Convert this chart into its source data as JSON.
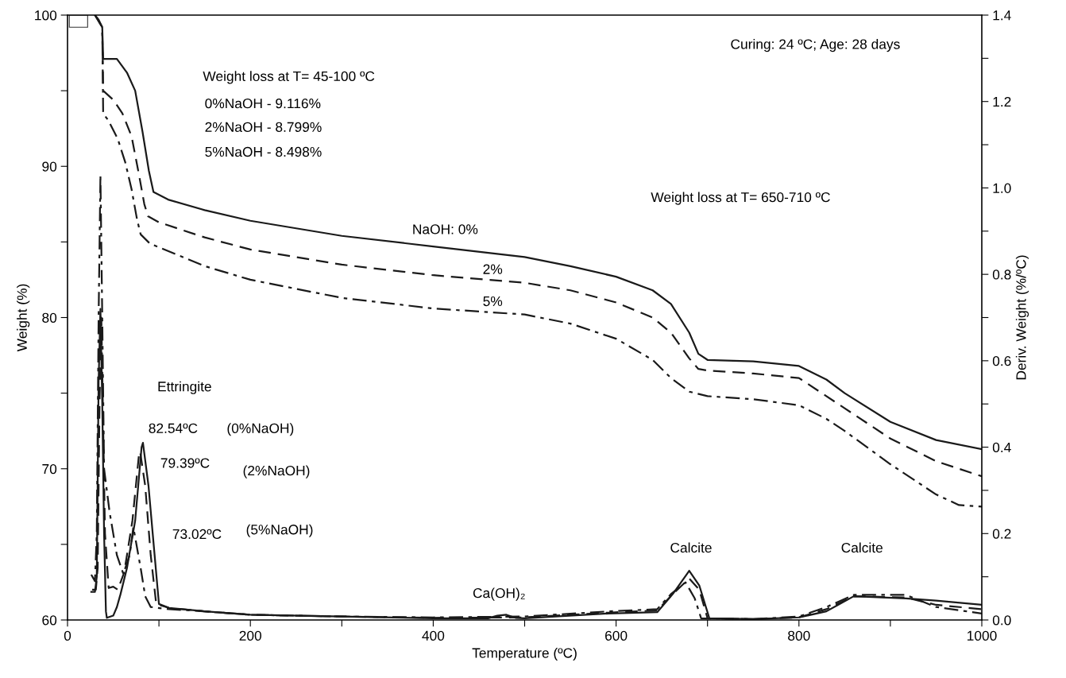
{
  "chart_data": {
    "type": "line",
    "xlabel": "Temperature (ºC)",
    "ylabel": "Weight (%)",
    "y2label": "Deriv. Weight (%/ºC)",
    "xlim": [
      0,
      1000
    ],
    "xticks": [
      0,
      {
        "value": 100,
        "label": null
      },
      200,
      {
        "value": 300,
        "label": null
      },
      400,
      {
        "value": 500,
        "label": null
      },
      600,
      {
        "value": 700,
        "label": null
      },
      800,
      {
        "value": 900,
        "label": null
      },
      1000
    ],
    "ylim": [
      60,
      100
    ],
    "yticks": [
      60,
      {
        "value": 65,
        "label": null
      },
      70,
      {
        "value": 75,
        "label": null
      },
      80,
      {
        "value": 85,
        "label": null
      },
      90,
      {
        "value": 95,
        "label": null
      },
      100
    ],
    "y2lim": [
      0,
      1.4
    ],
    "y2ticks": [
      {
        "value": 0,
        "label": "0.0"
      },
      {
        "value": 0.1,
        "label": null
      },
      0.2,
      {
        "value": 0.3,
        "label": null
      },
      0.4,
      {
        "value": 0.5,
        "label": null
      },
      0.6,
      {
        "value": 0.7,
        "label": null
      },
      0.8,
      {
        "value": 0.9,
        "label": null
      },
      {
        "value": 1,
        "label": "1.0"
      },
      {
        "value": 1.1,
        "label": null
      },
      1.2,
      {
        "value": 1.3,
        "label": null
      },
      1.4
    ],
    "grid": false,
    "legend": false,
    "marker": "none",
    "series": [
      {
        "color": "#1a1a1a",
        "line_style": "solid",
        "x": [
          30,
          34,
          38,
          39,
          54,
          65,
          74,
          82,
          89,
          94,
          110,
          150,
          200,
          300,
          400,
          500,
          550,
          600,
          640,
          660,
          680,
          690,
          700,
          750,
          800,
          830,
          850,
          900,
          950,
          1000
        ],
        "values": [
          100,
          99.7,
          99.2,
          97.1,
          97.1,
          96.2,
          95.0,
          92.3,
          89.7,
          88.3,
          87.8,
          87.1,
          86.4,
          85.4,
          84.7,
          84.0,
          83.4,
          82.7,
          81.8,
          80.9,
          79.0,
          77.6,
          77.2,
          77.1,
          76.8,
          75.9,
          75.0,
          73.1,
          71.9,
          71.3
        ]
      },
      {
        "color": "#1a1a1a",
        "line_style": "dashed",
        "x": [
          30,
          38,
          39,
          50,
          60,
          70,
          78,
          84,
          88,
          100,
          150,
          200,
          300,
          400,
          500,
          550,
          600,
          640,
          660,
          680,
          690,
          700,
          750,
          800,
          850,
          900,
          950,
          1000
        ],
        "values": [
          100,
          99.2,
          95.0,
          94.4,
          93.5,
          92.0,
          89.5,
          87.5,
          86.7,
          86.3,
          85.3,
          84.5,
          83.5,
          82.8,
          82.3,
          81.8,
          81.0,
          80.0,
          79.0,
          77.3,
          76.6,
          76.5,
          76.3,
          76.0,
          74.0,
          72.0,
          70.5,
          69.5
        ]
      },
      {
        "color": "#1a1a1a",
        "line_style": "dashdot",
        "x": [
          30,
          38,
          39,
          45,
          55,
          63,
          70,
          76,
          80,
          90,
          150,
          200,
          300,
          400,
          500,
          550,
          600,
          640,
          660,
          680,
          700,
          750,
          800,
          830,
          850,
          900,
          950,
          975,
          1000
        ],
        "values": [
          100,
          99.2,
          93.5,
          93.0,
          91.8,
          90.3,
          88.5,
          86.5,
          85.5,
          84.9,
          83.4,
          82.5,
          81.3,
          80.6,
          80.2,
          79.6,
          78.6,
          77.2,
          76.0,
          75.1,
          74.8,
          74.6,
          74.2,
          73.3,
          72.5,
          70.3,
          68.3,
          67.6,
          67.5
        ]
      },
      {
        "color": "#1a1a1a",
        "line_style": "solid",
        "axis": "y2",
        "x": [
          26,
          30,
          32,
          34,
          36,
          38,
          40,
          42,
          43,
          50,
          54,
          58,
          65,
          74,
          81,
          82.5,
          88.6,
          94,
          100,
          111,
          150,
          200,
          300,
          400,
          460,
          470,
          480,
          490,
          500,
          592,
          645,
          662,
          680,
          691,
          702,
          750,
          800,
          830,
          860,
          917,
          950,
          1000
        ],
        "values": [
          0.065,
          0.065,
          0.1,
          0.55,
          0.72,
          0.5,
          0.2,
          0.02,
          0.005,
          0.01,
          0.03,
          0.06,
          0.12,
          0.23,
          0.4,
          0.41,
          0.31,
          0.18,
          0.037,
          0.028,
          0.02,
          0.012,
          0.008,
          0.004,
          0.004,
          0.01,
          0.012,
          0.005,
          0.004,
          0.015,
          0.018,
          0.06,
          0.114,
          0.08,
          0.004,
          0.002,
          0.006,
          0.02,
          0.055,
          0.05,
          0.045,
          0.035
        ]
      },
      {
        "color": "#1a1a1a",
        "line_style": "dashed",
        "axis": "y2",
        "x": [
          27,
          31,
          33,
          35,
          37,
          39,
          41,
          45,
          50,
          55,
          62,
          71,
          78,
          79.4,
          85,
          91,
          97,
          111,
          150,
          200,
          300,
          400,
          500,
          592,
          645,
          662,
          680,
          691,
          700,
          750,
          800,
          830,
          860,
          917,
          950,
          1000
        ],
        "values": [
          0.07,
          0.07,
          0.12,
          0.5,
          0.7,
          0.45,
          0.2,
          0.074,
          0.077,
          0.07,
          0.11,
          0.23,
          0.38,
          0.39,
          0.31,
          0.15,
          0.037,
          0.028,
          0.02,
          0.012,
          0.008,
          0.005,
          0.006,
          0.017,
          0.022,
          0.06,
          0.096,
          0.07,
          0.004,
          0.002,
          0.006,
          0.025,
          0.055,
          0.052,
          0.035,
          0.025
        ]
      },
      {
        "color": "#1a1a1a",
        "line_style": "dashdot",
        "axis": "y2",
        "x": [
          26,
          30,
          32,
          34,
          36,
          38,
          40,
          43,
          46,
          54,
          61,
          68,
          72,
          80,
          85,
          91,
          111,
          150,
          200,
          300,
          400,
          500,
          592,
          645,
          660,
          676,
          686,
          693,
          750,
          800,
          830,
          860,
          917,
          950,
          1000
        ],
        "values": [
          0.105,
          0.09,
          0.2,
          0.7,
          1.03,
          0.7,
          0.35,
          0.3,
          0.25,
          0.15,
          0.107,
          0.15,
          0.215,
          0.12,
          0.055,
          0.03,
          0.025,
          0.02,
          0.012,
          0.008,
          0.006,
          0.008,
          0.02,
          0.025,
          0.06,
          0.087,
          0.05,
          0.004,
          0.002,
          0.008,
          0.03,
          0.058,
          0.058,
          0.03,
          0.015
        ]
      }
    ],
    "annotations": [
      "Weight loss at T= 45-100 ºC",
      "0%NaOH - 9.116%",
      "2%NaOH - 8.799%",
      "5%NaOH - 8.498%",
      "Weight loss at T= 650-710 ºC",
      "Curing: 24 ºC; Age: 28 days",
      "NaOH: 0%",
      "2%",
      "5%",
      "Ettringite",
      "82.54ºC",
      "(0%NaOH)",
      "79.39ºC",
      "(2%NaOH)",
      "73.02ºC",
      "(5%NaOH)",
      "Calcite",
      "Ca(OH)₂",
      "Calcite"
    ]
  }
}
